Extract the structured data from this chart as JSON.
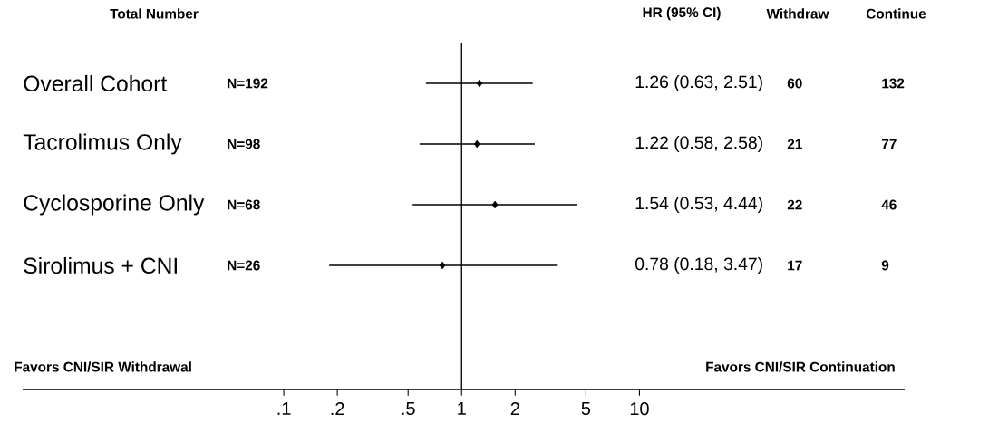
{
  "chart_data": {
    "type": "scatter",
    "orientation": "horizontal",
    "categories": [
      "Overall Cohort",
      "Tacrolimus Only",
      "Cyclosporine Only",
      "Sirolimus + CNI"
    ],
    "values": [
      1.26,
      1.22,
      1.54,
      0.78
    ],
    "errors": [
      [
        0.63,
        2.51
      ],
      [
        0.58,
        2.58
      ],
      [
        0.53,
        4.44
      ],
      [
        0.18,
        3.47
      ]
    ],
    "color": "#000000",
    "marker": "diamond",
    "log": "x",
    "xlim": [
      0.0034,
      310
    ],
    "xticks": [
      {
        "value": 0.1,
        "label": ".1"
      },
      {
        "value": 0.2,
        "label": ".2"
      },
      {
        "value": 0.5,
        "label": ".5"
      },
      1,
      2,
      5,
      10
    ],
    "ref_lines": [
      {
        "axis": "x",
        "value": 1
      }
    ],
    "annotations": [
      "Total Number",
      "HR (95% CI)",
      "Withdraw",
      "Continue",
      "N=192",
      "N=98",
      "N=68",
      "N=26",
      "1.26 (0.63, 2.51)",
      "1.22 (0.58, 2.58)",
      "1.54 (0.53, 4.44)",
      "0.78 (0.18, 3.47)",
      "60",
      "21",
      "22",
      "17",
      "132",
      "77",
      "46",
      "9",
      "Favors CNI/SIR Withdrawal",
      "Favors CNI/SIR Continuation"
    ]
  }
}
